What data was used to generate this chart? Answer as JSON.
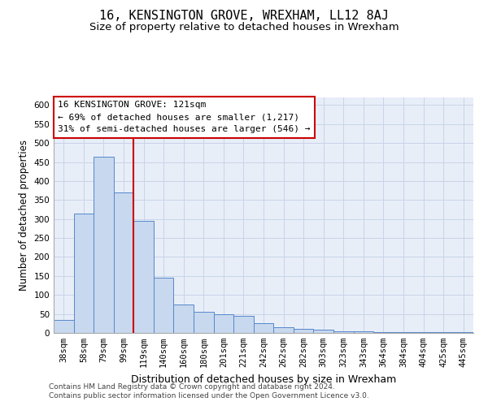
{
  "title": "16, KENSINGTON GROVE, WREXHAM, LL12 8AJ",
  "subtitle": "Size of property relative to detached houses in Wrexham",
  "xlabel": "Distribution of detached houses by size in Wrexham",
  "ylabel": "Number of detached properties",
  "footer_line1": "Contains HM Land Registry data © Crown copyright and database right 2024.",
  "footer_line2": "Contains public sector information licensed under the Open Government Licence v3.0.",
  "categories": [
    "38sqm",
    "58sqm",
    "79sqm",
    "99sqm",
    "119sqm",
    "140sqm",
    "160sqm",
    "180sqm",
    "201sqm",
    "221sqm",
    "242sqm",
    "262sqm",
    "282sqm",
    "303sqm",
    "323sqm",
    "343sqm",
    "364sqm",
    "384sqm",
    "404sqm",
    "425sqm",
    "445sqm"
  ],
  "values": [
    35,
    315,
    465,
    370,
    295,
    145,
    75,
    55,
    50,
    45,
    25,
    15,
    10,
    8,
    5,
    5,
    3,
    3,
    3,
    2,
    3
  ],
  "bar_color": "#c8d8ee",
  "bar_edge_color": "#5588cc",
  "grid_color": "#c8d4e8",
  "annotation_line1": "16 KENSINGTON GROVE: 121sqm",
  "annotation_line2": "← 69% of detached houses are smaller (1,217)",
  "annotation_line3": "31% of semi-detached houses are larger (546) →",
  "vline_index": 4,
  "vline_color": "#cc0000",
  "annotation_box_edge_color": "#cc0000",
  "ylim": [
    0,
    620
  ],
  "yticks": [
    0,
    50,
    100,
    150,
    200,
    250,
    300,
    350,
    400,
    450,
    500,
    550,
    600
  ],
  "title_fontsize": 11,
  "subtitle_fontsize": 9.5,
  "xlabel_fontsize": 9,
  "ylabel_fontsize": 8.5,
  "tick_fontsize": 7.5,
  "annotation_fontsize": 8,
  "footer_fontsize": 6.5
}
